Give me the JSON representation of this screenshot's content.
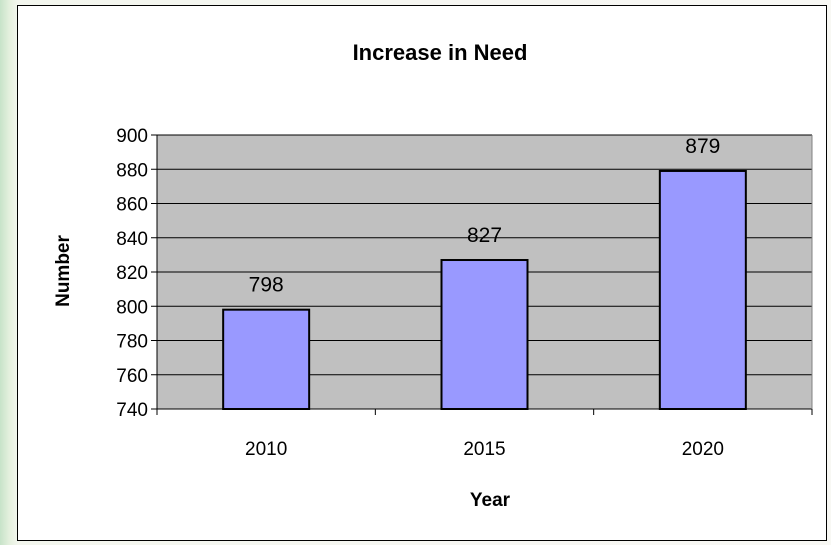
{
  "chart_data": {
    "type": "bar",
    "title": "Increase in Need",
    "xlabel": "Year",
    "ylabel": "Number",
    "categories": [
      "2010",
      "2015",
      "2020"
    ],
    "values": [
      798,
      827,
      879
    ],
    "data_labels": [
      "798",
      "827",
      "879"
    ],
    "ylim": [
      740,
      900
    ],
    "yticks": [
      "740",
      "760",
      "780",
      "800",
      "820",
      "840",
      "860",
      "880",
      "900"
    ],
    "grid": true,
    "legend": "none",
    "colors": {
      "bar_fill": "#9999ff",
      "bar_stroke": "#000000",
      "plot_background": "#c0c0c0",
      "gridline": "#000000"
    }
  }
}
